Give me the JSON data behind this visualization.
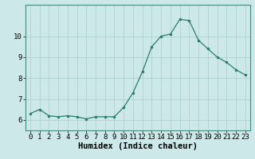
{
  "x": [
    0,
    1,
    2,
    3,
    4,
    5,
    6,
    7,
    8,
    9,
    10,
    11,
    12,
    13,
    14,
    15,
    16,
    17,
    18,
    19,
    20,
    21,
    22,
    23
  ],
  "y": [
    6.3,
    6.5,
    6.2,
    6.15,
    6.2,
    6.15,
    6.05,
    6.15,
    6.15,
    6.15,
    6.6,
    7.3,
    8.3,
    9.5,
    10.0,
    10.1,
    10.8,
    10.75,
    9.8,
    9.4,
    9.0,
    8.75,
    8.4,
    8.15
  ],
  "xlabel": "Humidex (Indice chaleur)",
  "xlim": [
    -0.5,
    23.5
  ],
  "ylim": [
    5.5,
    11.5
  ],
  "yticks": [
    6,
    7,
    8,
    9,
    10
  ],
  "xticks": [
    0,
    1,
    2,
    3,
    4,
    5,
    6,
    7,
    8,
    9,
    10,
    11,
    12,
    13,
    14,
    15,
    16,
    17,
    18,
    19,
    20,
    21,
    22,
    23
  ],
  "line_color": "#2d7d6e",
  "bg_color": "#cce8e8",
  "grid_color": "#aacece",
  "label_fontsize": 7.5,
  "tick_fontsize": 6.5
}
